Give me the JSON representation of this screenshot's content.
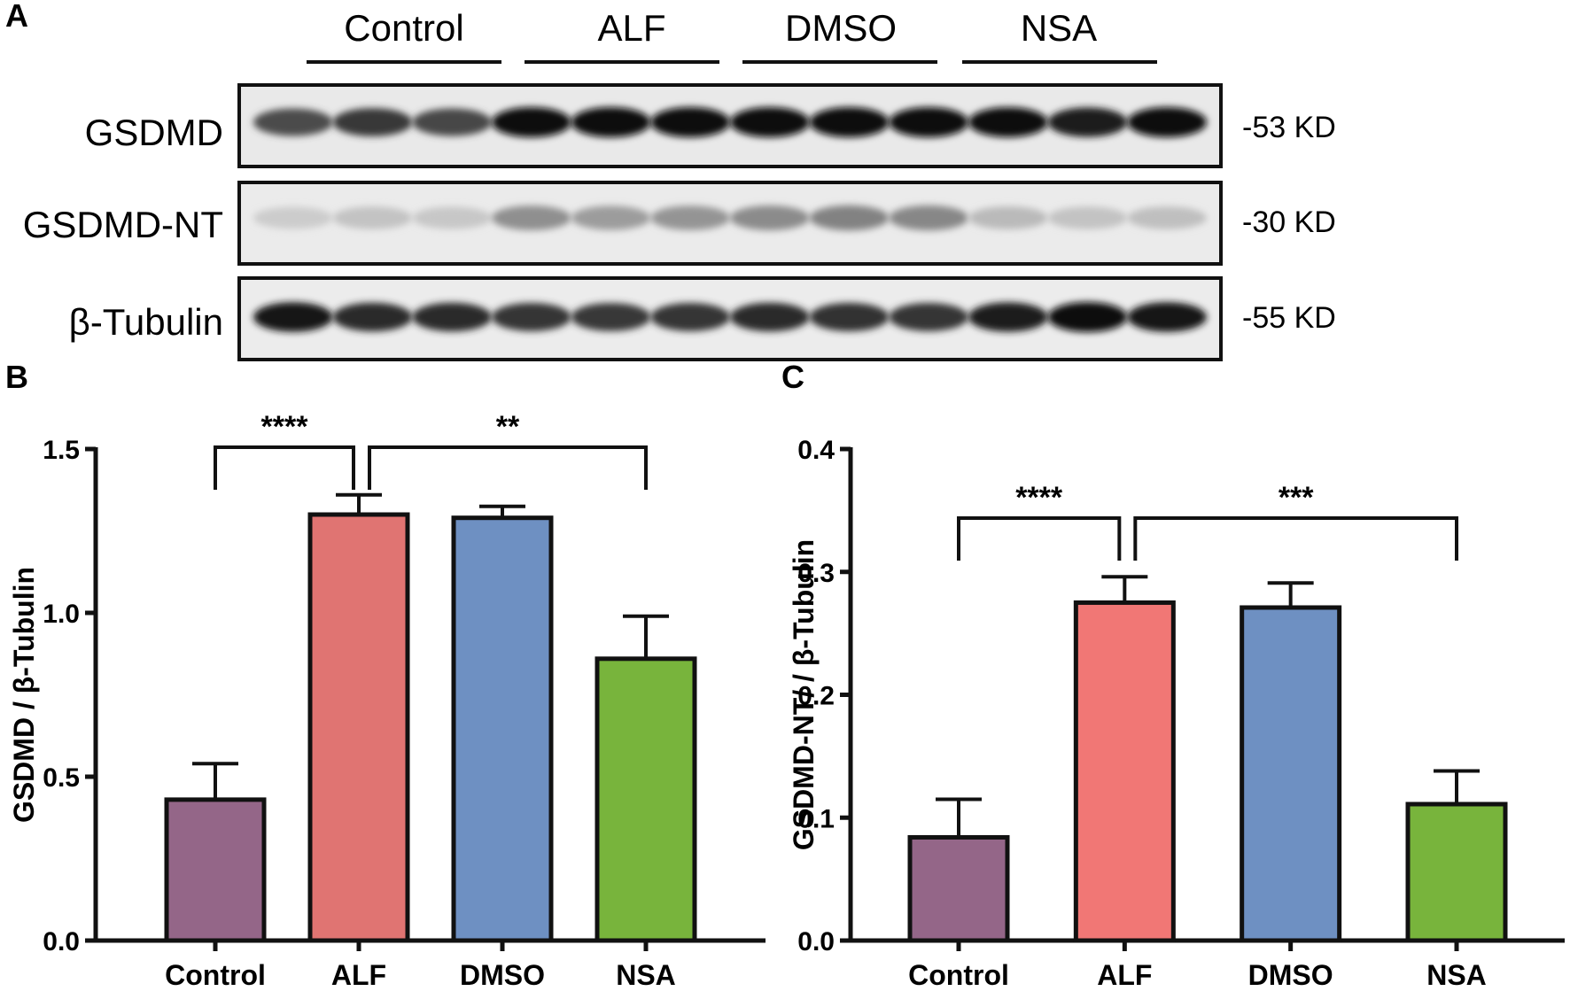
{
  "panel_letters": {
    "a": "A",
    "b": "B",
    "c": "C"
  },
  "blot": {
    "groups": [
      "Control",
      "ALF",
      "DMSO",
      "NSA"
    ],
    "rows": [
      {
        "name": "GSDMD",
        "marker": "-53 KD"
      },
      {
        "name": "GSDMD-NT",
        "marker": "-30 KD"
      },
      {
        "name": "β-Tubulin",
        "marker": "-55 KD"
      }
    ],
    "band_intensity": [
      [
        0.7,
        0.78,
        0.72,
        1.0,
        1.0,
        1.0,
        1.0,
        1.0,
        1.0,
        0.98,
        0.92,
        1.0
      ],
      [
        0.1,
        0.14,
        0.12,
        0.38,
        0.32,
        0.36,
        0.4,
        0.44,
        0.42,
        0.18,
        0.14,
        0.16
      ],
      [
        0.95,
        0.85,
        0.85,
        0.8,
        0.78,
        0.8,
        0.85,
        0.82,
        0.8,
        0.92,
        1.0,
        0.95
      ]
    ]
  },
  "colors": {
    "Control": "#946688",
    "ALF": "#e07472",
    "DMSO": "#6e90c2",
    "NSA": "#78b43c",
    "ALF_c": "#f17775"
  },
  "chart_data": [
    {
      "type": "bar",
      "panel": "B",
      "categories": [
        "Control",
        "ALF",
        "DMSO",
        "NSA"
      ],
      "values": [
        0.43,
        1.3,
        1.29,
        0.86
      ],
      "errors": [
        0.11,
        0.06,
        0.035,
        0.13
      ],
      "ylabel": "GSDMD / β-Tubulin",
      "ylim": [
        0,
        1.5
      ],
      "yticks": [
        "0.0",
        "0.5",
        "1.0",
        "1.5"
      ],
      "significance": [
        {
          "from": "Control",
          "to": "ALF",
          "label": "****"
        },
        {
          "from": "ALF",
          "to": "NSA",
          "label": "**"
        }
      ]
    },
    {
      "type": "bar",
      "panel": "C",
      "categories": [
        "Control",
        "ALF",
        "DMSO",
        "NSA"
      ],
      "values": [
        0.084,
        0.275,
        0.271,
        0.111
      ],
      "errors": [
        0.031,
        0.021,
        0.02,
        0.027
      ],
      "ylabel": "GSDMD-NT/ / β-Tubulin",
      "ylim": [
        0,
        0.4
      ],
      "yticks": [
        "0.0",
        "0.1",
        "0.2",
        "0.3",
        "0.4"
      ],
      "significance": [
        {
          "from": "Control",
          "to": "ALF",
          "label": "****"
        },
        {
          "from": "ALF",
          "to": "NSA",
          "label": "***"
        }
      ]
    }
  ]
}
